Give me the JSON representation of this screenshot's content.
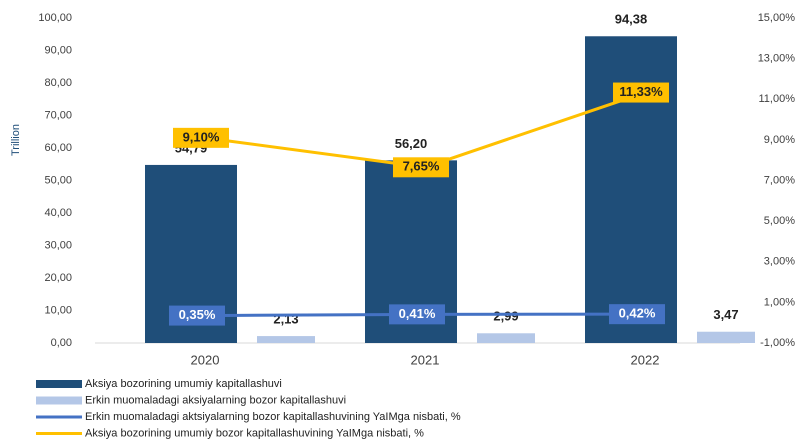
{
  "chart_data": {
    "type": "bar",
    "y_label": "Trillion",
    "categories": [
      "2020",
      "2021",
      "2022"
    ],
    "series": [
      {
        "name": "Aksiya bozorining umumiy kapitallashuvi",
        "type": "bar",
        "color": "#1f4e79",
        "values": [
          54.79,
          56.2,
          94.38
        ],
        "value_labels": [
          "54,79",
          "56,20",
          "94,38"
        ]
      },
      {
        "name": "Erkin muomaladagi aksiyalarning bozor kapitallashuvi",
        "type": "bar",
        "color": "#b4c7e7",
        "values": [
          2.13,
          2.99,
          3.47
        ],
        "value_labels": [
          "2,13",
          "2,99",
          "3,47"
        ]
      },
      {
        "name": "Erkin muomaladagi aktsiyalarning bozor kapitallashuvining YaIMga nisbati, %",
        "type": "line",
        "axis": "y2",
        "color": "#4472c4",
        "values": [
          0.35,
          0.41,
          0.42
        ],
        "value_labels": [
          "0,35%",
          "0,41%",
          "0,42%"
        ]
      },
      {
        "name": "Aksiya bozorining umumiy bozor kapitallashuvining YaIMga nisbati, %",
        "type": "line",
        "axis": "y2",
        "color": "#ffc000",
        "values": [
          9.1,
          7.65,
          11.33
        ],
        "value_labels": [
          "9,10%",
          "7,65%",
          "11,33%"
        ]
      }
    ],
    "ylim": [
      0,
      100
    ],
    "yticks": [
      {
        "value": 0,
        "label": "0,00"
      },
      {
        "value": 10,
        "label": "10,00"
      },
      {
        "value": 20,
        "label": "20,00"
      },
      {
        "value": 30,
        "label": "30,00"
      },
      {
        "value": 40,
        "label": "40,00"
      },
      {
        "value": 50,
        "label": "50,00"
      },
      {
        "value": 60,
        "label": "60,00"
      },
      {
        "value": 70,
        "label": "70,00"
      },
      {
        "value": 80,
        "label": "80,00"
      },
      {
        "value": 90,
        "label": "90,00"
      },
      {
        "value": 100,
        "label": "100,00"
      }
    ],
    "y2lim": [
      -1,
      15
    ],
    "y2ticks": [
      {
        "value": -1,
        "label": "-1,00%"
      },
      {
        "value": 1,
        "label": "1,00%"
      },
      {
        "value": 3,
        "label": "3,00%"
      },
      {
        "value": 5,
        "label": "5,00%"
      },
      {
        "value": 7,
        "label": "7,00%"
      },
      {
        "value": 9,
        "label": "9,00%"
      },
      {
        "value": 11,
        "label": "11,00%"
      },
      {
        "value": 13,
        "label": "13,00%"
      },
      {
        "value": 15,
        "label": "15,00%"
      }
    ],
    "legend": "bottom"
  }
}
